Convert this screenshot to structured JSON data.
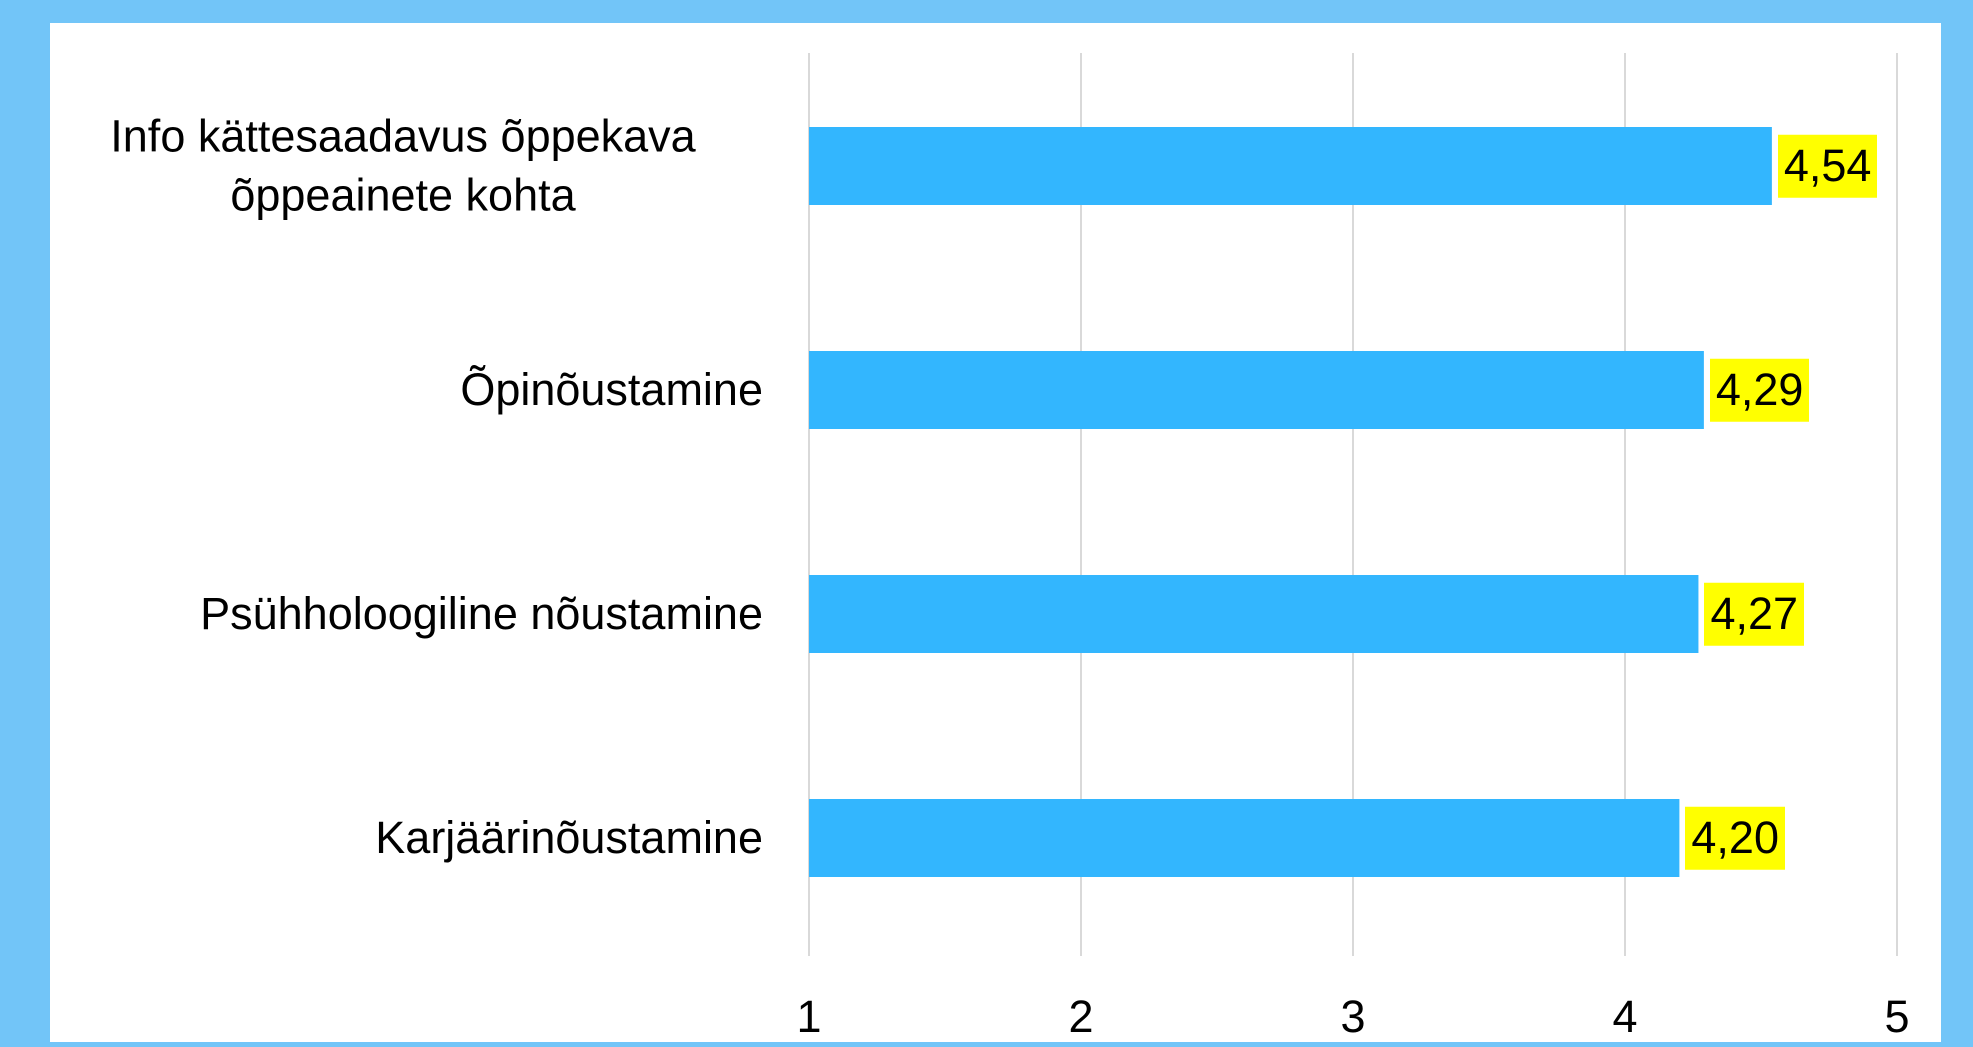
{
  "chart_data": {
    "type": "bar",
    "orientation": "horizontal",
    "categories": [
      "Info kättesaadavus õppekava õppeainete kohta",
      "Õpinõustamine",
      "Psühholoogiline nõustamine",
      "Karjäärinõustamine"
    ],
    "values": [
      4.54,
      4.29,
      4.27,
      4.2
    ],
    "value_labels": [
      "4,54",
      "4,29",
      "4,27",
      "4,20"
    ],
    "color": "#33b6fe",
    "label_background": "#ffff00",
    "xlim": [
      1,
      5
    ],
    "xticks": [
      1,
      2,
      3,
      4,
      5
    ],
    "grid": true
  }
}
